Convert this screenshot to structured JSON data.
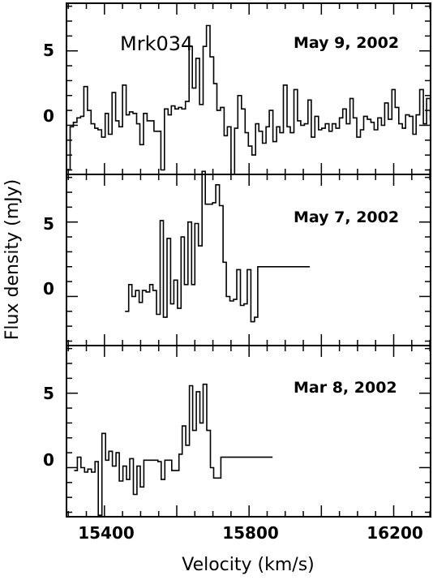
{
  "chart_data": {
    "type": "line",
    "style": "step",
    "object_name": "Mrk034",
    "xlabel": "Velocity (km/s)",
    "ylabel": "Flux density (mJy)",
    "xlim": [
      15295,
      16302
    ],
    "xticks": [
      15400,
      15800,
      16200
    ],
    "xtick_labels": [
      "15400",
      "15800",
      "16200"
    ],
    "panels": [
      {
        "label": "May 9, 2002",
        "ylim": [
          -3.3,
          8.2
        ],
        "yticks": [
          0,
          5
        ],
        "ytick_labels": [
          "0",
          "5"
        ],
        "x": [
          15295,
          15305,
          15314,
          15324,
          15334,
          15343,
          15353,
          15363,
          15373,
          15382,
          15392,
          15402,
          15411,
          15421,
          15431,
          15440,
          15450,
          15460,
          15469,
          15479,
          15489,
          15498,
          15508,
          15518,
          15527,
          15537,
          15547,
          15556,
          15566,
          15576,
          15585,
          15595,
          15605,
          15614,
          15624,
          15634,
          15643,
          15653,
          15663,
          15673,
          15682,
          15692,
          15702,
          15711,
          15721,
          15731,
          15740,
          15750,
          15760,
          15769,
          15779,
          15789,
          15798,
          15808,
          15818,
          15827,
          15837,
          15847,
          15856,
          15866,
          15876,
          15885,
          15895,
          15905,
          15914,
          15924,
          15934,
          15943,
          15953,
          15963,
          15972,
          15982,
          15992,
          16001,
          16011,
          16021,
          16030,
          16040,
          16050,
          16059,
          16069,
          16079,
          16088,
          16098,
          16108,
          16117,
          16127,
          16137,
          16146,
          16156,
          16166,
          16175,
          16185,
          16195,
          16204,
          16214,
          16224,
          16233,
          16243,
          16253,
          16262,
          16272,
          16282,
          16291,
          16301
        ],
        "y": [
          -3.0,
          -0.1,
          0.2,
          0.5,
          0.6,
          2.6,
          1.0,
          0.1,
          -0.2,
          -0.3,
          -0.8,
          0.8,
          -0.6,
          2.2,
          0.3,
          -0.1,
          2.7,
          0.7,
          0.9,
          0.8,
          0.1,
          -1.3,
          0.8,
          0.3,
          0.3,
          -0.4,
          -0.4,
          -3.0,
          1.1,
          0.7,
          1.3,
          1.1,
          1.2,
          1.1,
          1.6,
          5.3,
          2.5,
          4.5,
          1.4,
          5.3,
          6.7,
          4.6,
          2.8,
          1.0,
          1.2,
          -0.7,
          -0.1,
          -3.3,
          -0.2,
          2.0,
          1.1,
          -0.5,
          -1.4,
          -2.0,
          0.1,
          -0.4,
          -1.2,
          -0.1,
          1.0,
          -1.1,
          -0.1,
          -0.5,
          2.7,
          -0.1,
          -0.5,
          2.4,
          0.3,
          0.0,
          0.1,
          1.7,
          -0.8,
          0.6,
          -0.3,
          -0.2,
          0.1,
          -0.4,
          0.1,
          -0.2,
          0.5,
          1.1,
          0.1,
          1.8,
          0.5,
          -0.8,
          -0.3,
          0.6,
          0.4,
          0.2,
          -0.3,
          0.5,
          0.0,
          1.5,
          0.4,
          2.4,
          1.2,
          0.1,
          -0.2,
          0.7,
          0.6,
          -0.6,
          0.7,
          2.4,
          0.1,
          1.8,
          0.3
        ],
        "series_visible_range": [
          15295,
          16301
        ]
      },
      {
        "label": "May 7, 2002",
        "ylim": [
          -3.3,
          8.2
        ],
        "yticks": [
          0,
          5
        ],
        "ytick_labels": [
          "0",
          "5"
        ],
        "x": [
          15457,
          15467,
          15476,
          15486,
          15496,
          15505,
          15515,
          15525,
          15534,
          15544,
          15554,
          15563,
          15573,
          15583,
          15592,
          15602,
          15612,
          15621,
          15631,
          15641,
          15650,
          15660,
          15670,
          15679,
          15689,
          15699,
          15708,
          15718,
          15728,
          15737,
          15747,
          15757,
          15766,
          15776,
          15786,
          15795,
          15805,
          15815,
          15824,
          15834,
          15844,
          15853,
          15863,
          15873,
          15882,
          15892,
          15902,
          15911,
          15921,
          15931,
          15940,
          15950,
          15960,
          15969
        ],
        "y": [
          -1.0,
          0.8,
          0.0,
          0.4,
          -0.4,
          0.4,
          0.3,
          0.8,
          0.4,
          -1.2,
          5.1,
          -1.4,
          3.9,
          -0.5,
          1.1,
          -0.8,
          4.0,
          0.8,
          5.0,
          0.8,
          4.9,
          3.4,
          8.4,
          6.2,
          6.2,
          6.3,
          7.5,
          6.1,
          2.3,
          0.0,
          -0.3,
          -0.2,
          1.8,
          -0.6,
          -0.5,
          1.8,
          -1.7,
          -1.4,
          2.0,
          2.0,
          2.0,
          2.0,
          2.0,
          2.0,
          2.0,
          2.0,
          2.0,
          2.0,
          2.0,
          2.0,
          2.0,
          2.0,
          2.0,
          2.0
        ],
        "series_visible_range": [
          15457,
          15968
        ]
      },
      {
        "label": "Mar 8, 2002",
        "ylim": [
          -3.3,
          8.2
        ],
        "yticks": [
          0,
          5
        ],
        "ytick_labels": [
          "0",
          "5"
        ],
        "x": [
          15316,
          15325,
          15335,
          15345,
          15354,
          15364,
          15374,
          15383,
          15393,
          15403,
          15412,
          15422,
          15432,
          15441,
          15451,
          15461,
          15470,
          15480,
          15490,
          15499,
          15509,
          15519,
          15528,
          15538,
          15548,
          15557,
          15567,
          15577,
          15586,
          15596,
          15606,
          15615,
          15625,
          15635,
          15644,
          15654,
          15664,
          15673,
          15683,
          15693,
          15702,
          15712,
          15722,
          15731,
          15741,
          15751,
          15760,
          15770,
          15780,
          15789,
          15799,
          15809,
          15818,
          15828,
          15838,
          15847,
          15857,
          15867
        ],
        "y": [
          -0.2,
          0.7,
          0.0,
          -0.3,
          -0.1,
          -0.3,
          0.4,
          -3.2,
          2.3,
          0.5,
          1.1,
          0.1,
          1.0,
          -0.9,
          0.1,
          -0.8,
          0.6,
          -1.8,
          0.1,
          -1.3,
          0.5,
          0.5,
          0.5,
          0.5,
          0.4,
          -0.8,
          0.5,
          0.5,
          -0.2,
          -0.2,
          0.9,
          2.8,
          1.5,
          5.5,
          2.5,
          5.1,
          3.0,
          5.6,
          2.5,
          0.0,
          -0.7,
          -0.7,
          0.7,
          0.7,
          0.7,
          0.7,
          0.7,
          0.7,
          0.7,
          0.7,
          0.7,
          0.7,
          0.7,
          0.7,
          0.7,
          0.7,
          0.7,
          0.7
        ],
        "series_visible_range": [
          15316,
          15865
        ]
      }
    ]
  }
}
